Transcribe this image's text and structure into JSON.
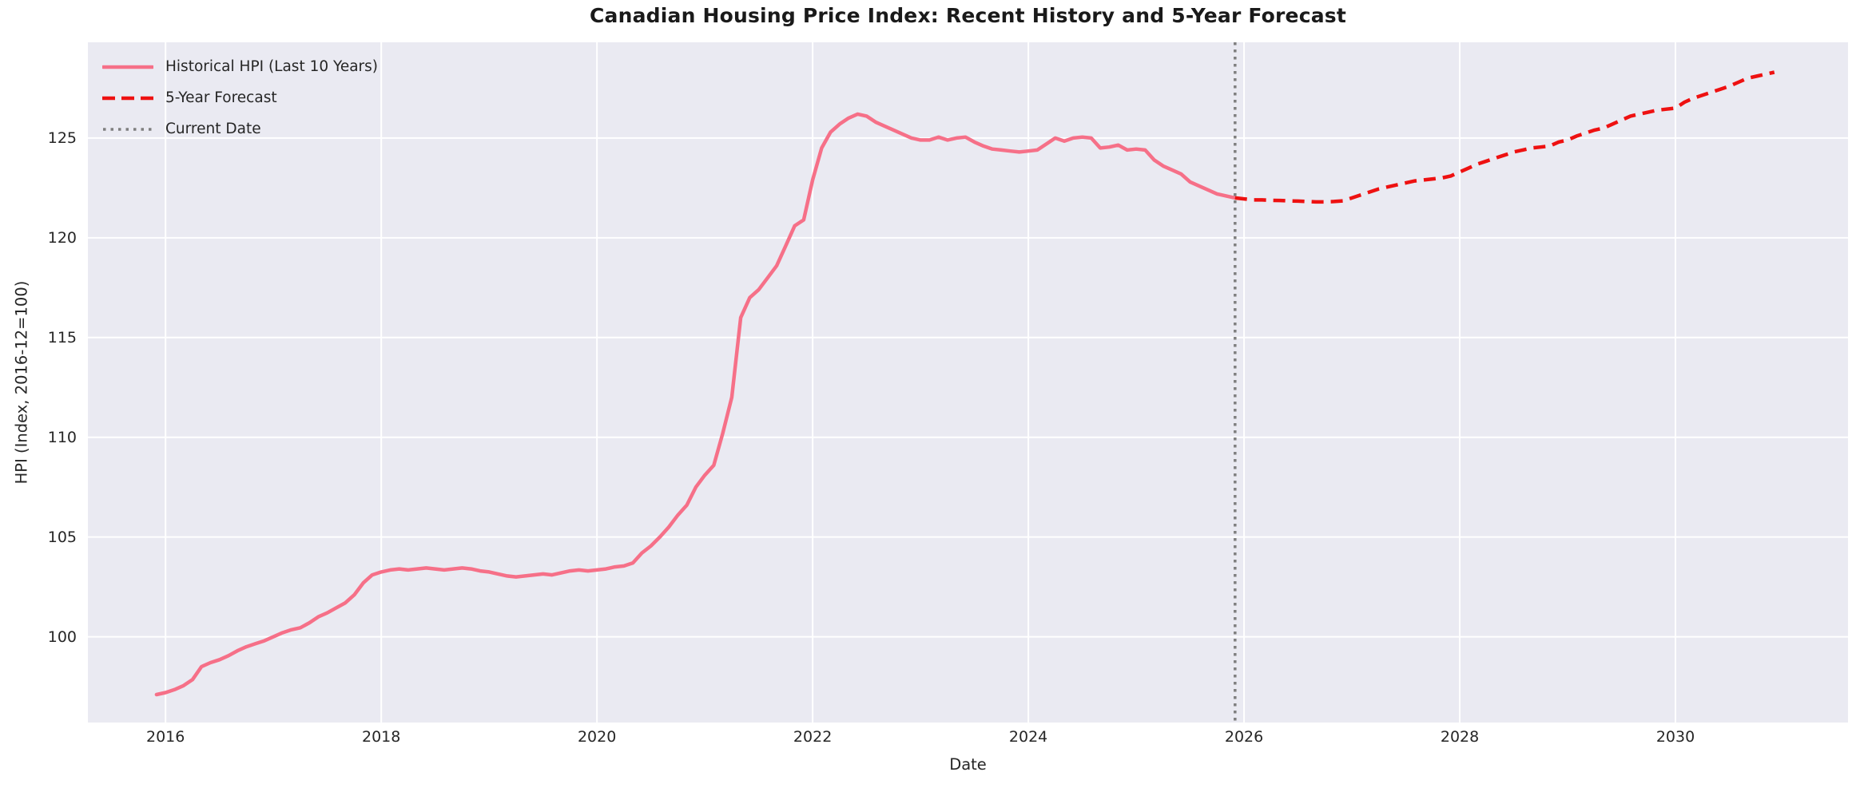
{
  "chart_data": {
    "type": "line",
    "title": "Canadian Housing Price Index: Recent History and 5-Year Forecast",
    "xlabel": "Date",
    "ylabel": "HPI (Index, 2016-12=100)",
    "plot_background": "#eaeaf2",
    "grid_color": "#ffffff",
    "text_color": "#262626",
    "grid": true,
    "legend_position": "upper-left",
    "xlim": [
      2015.28,
      2031.6
    ],
    "ylim": [
      95.7,
      129.8
    ],
    "x_ticks": [
      2016,
      2018,
      2020,
      2022,
      2024,
      2026,
      2028,
      2030
    ],
    "y_ticks": [
      100,
      105,
      110,
      115,
      120,
      125
    ],
    "series": [
      {
        "name": "Historical HPI (Last 10 Years)",
        "color": "#f67088",
        "line_style": "solid",
        "cadence": "monthly",
        "x_start": 2015.9167,
        "x_step": 0.0833333,
        "values": [
          97.1,
          97.2,
          97.35,
          97.55,
          97.85,
          98.5,
          98.7,
          98.85,
          99.05,
          99.3,
          99.5,
          99.65,
          99.8,
          100.0,
          100.2,
          100.35,
          100.45,
          100.7,
          101.0,
          101.2,
          101.45,
          101.7,
          102.1,
          102.7,
          103.1,
          103.25,
          103.35,
          103.4,
          103.35,
          103.4,
          103.45,
          103.4,
          103.35,
          103.4,
          103.45,
          103.4,
          103.3,
          103.25,
          103.15,
          103.05,
          103.0,
          103.05,
          103.1,
          103.15,
          103.1,
          103.2,
          103.3,
          103.35,
          103.3,
          103.35,
          103.4,
          103.5,
          103.55,
          103.7,
          104.2,
          104.55,
          105.0,
          105.5,
          106.1,
          106.6,
          107.5,
          108.1,
          108.6,
          110.2,
          112.0,
          116.0,
          117.0,
          117.4,
          118.0,
          118.6,
          119.6,
          120.6,
          120.9,
          122.9,
          124.5,
          125.3,
          125.7,
          126.0,
          126.2,
          126.1,
          125.8,
          125.6,
          125.4,
          125.2,
          125.0,
          124.9,
          124.9,
          125.05,
          124.9,
          125.0,
          125.05,
          124.8,
          124.6,
          124.45,
          124.4,
          124.35,
          124.3,
          124.35,
          124.4,
          124.7,
          125.0,
          124.85,
          125.0,
          125.05,
          125.0,
          124.5,
          124.55,
          124.65,
          124.4,
          124.45,
          124.4,
          123.9,
          123.6,
          123.4,
          123.2,
          122.8,
          122.6,
          122.4,
          122.2,
          122.1,
          122.0
        ]
      },
      {
        "name": "5-Year Forecast",
        "color": "#ee1111",
        "line_style": "dashed",
        "cadence": "monthly",
        "x_start": 2025.9167,
        "x_step": 0.0833333,
        "values": [
          122.0,
          121.95,
          121.9,
          121.9,
          121.88,
          121.87,
          121.85,
          121.84,
          121.82,
          121.8,
          121.8,
          121.82,
          121.85,
          122.0,
          122.15,
          122.3,
          122.45,
          122.55,
          122.65,
          122.75,
          122.85,
          122.9,
          122.95,
          123.0,
          123.1,
          123.3,
          123.5,
          123.7,
          123.85,
          124.0,
          124.15,
          124.3,
          124.4,
          124.5,
          124.55,
          124.6,
          124.8,
          124.9,
          125.1,
          125.25,
          125.4,
          125.5,
          125.7,
          125.9,
          126.1,
          126.2,
          126.3,
          126.4,
          126.45,
          126.5,
          126.8,
          127.0,
          127.15,
          127.3,
          127.45,
          127.6,
          127.8,
          128.0,
          128.1,
          128.2,
          128.3
        ]
      }
    ],
    "vline": {
      "name": "Current Date",
      "x": 2025.9167,
      "color": "#7f7f7f",
      "line_style": "dotted"
    }
  }
}
